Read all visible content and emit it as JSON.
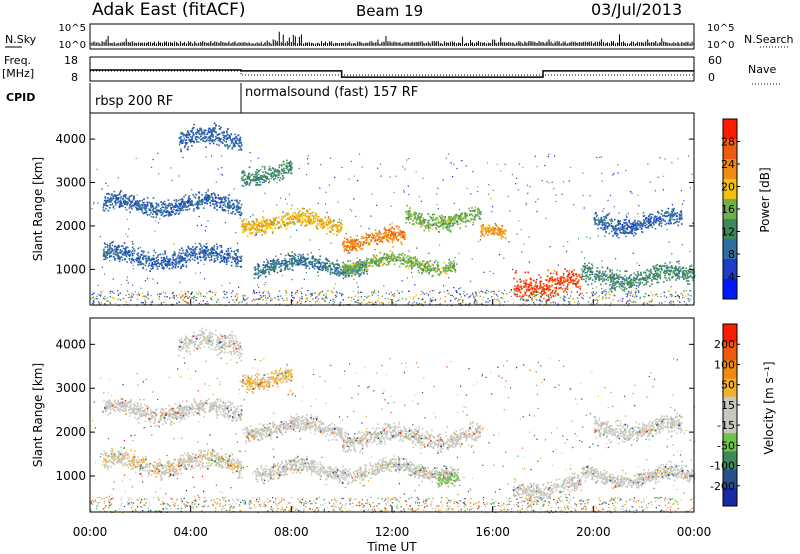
{
  "header": {
    "station": "Adak East (fitACF)",
    "beam": "Beam 19",
    "date": "03/Jul/2013"
  },
  "nsky_panel": {
    "left_label": "N.Sky",
    "right_label": "N.Search",
    "ticks_left": [
      "10^5",
      "10^0"
    ],
    "ticks_right": [
      "10^5",
      "10^0"
    ]
  },
  "freq_panel": {
    "left_label_1": "Freq.",
    "left_label_2": "[MHz]",
    "right_label": "Nave",
    "ticks_left": [
      "18",
      "8"
    ],
    "ticks_right": [
      "60",
      "0"
    ],
    "freq_segments": [
      {
        "start": "00:00",
        "end": "06:00",
        "freq_mhz": 12.6
      },
      {
        "start": "06:00",
        "end": "10:00",
        "freq_mhz": 12.2
      },
      {
        "start": "10:00",
        "end": "18:00",
        "freq_mhz": 9.6
      },
      {
        "start": "18:00",
        "end": "24:00",
        "freq_mhz": 12.2
      }
    ]
  },
  "cpid_panel": {
    "label": "CPID",
    "programs": [
      {
        "name": "rbsp 200 RF",
        "start": "00:00",
        "end": "06:00"
      },
      {
        "name": "normalsound (fast) 157 RF",
        "start": "06:00",
        "end": "24:00"
      }
    ]
  },
  "time_axis": {
    "label": "Time UT",
    "ticks": [
      "00:00",
      "04:00",
      "08:00",
      "12:00",
      "16:00",
      "20:00",
      "00:00"
    ]
  },
  "chart_data": [
    {
      "type": "heatmap",
      "panel": "power",
      "ylabel": "Slant Range [km]",
      "yticks": [
        "1000",
        "2000",
        "3000",
        "4000"
      ],
      "ylim": [
        180,
        4600
      ],
      "colorbar_label": "Power [dB]",
      "colorbar_ticks": [
        "4",
        "8",
        "12",
        "16",
        "20",
        "24",
        "28"
      ],
      "colorbar_range": [
        0,
        32
      ],
      "colorbar_colors": [
        "#0018ff",
        "#1d3fc8",
        "#2f6ea0",
        "#3c8a5c",
        "#6fb04a",
        "#f2c010",
        "#f08a10",
        "#ef5a10",
        "#ff1a00"
      ],
      "echo_bands": [
        {
          "start_h": 0.5,
          "end_h": 6,
          "range_km": 2500,
          "width_km": 280,
          "power_db": 8
        },
        {
          "start_h": 6,
          "end_h": 10,
          "range_km": 2100,
          "width_km": 260,
          "power_db": 20
        },
        {
          "start_h": 10,
          "end_h": 12.5,
          "range_km": 1700,
          "width_km": 240,
          "power_db": 24
        },
        {
          "start_h": 12.5,
          "end_h": 15.5,
          "range_km": 2200,
          "width_km": 260,
          "power_db": 16
        },
        {
          "start_h": 15.5,
          "end_h": 16.5,
          "range_km": 1800,
          "width_km": 220,
          "power_db": 22
        },
        {
          "start_h": 0.5,
          "end_h": 6,
          "range_km": 1300,
          "width_km": 300,
          "power_db": 8
        },
        {
          "start_h": 6.5,
          "end_h": 11,
          "range_km": 1100,
          "width_km": 250,
          "power_db": 10
        },
        {
          "start_h": 10,
          "end_h": 14.5,
          "range_km": 1150,
          "width_km": 220,
          "power_db": 16
        },
        {
          "start_h": 16.8,
          "end_h": 19.5,
          "range_km": 700,
          "width_km": 420,
          "power_db": 28
        },
        {
          "start_h": 19.5,
          "end_h": 24,
          "range_km": 850,
          "width_km": 300,
          "power_db": 12
        },
        {
          "start_h": 20,
          "end_h": 23.5,
          "range_km": 2100,
          "width_km": 300,
          "power_db": 8
        },
        {
          "start_h": 3.5,
          "end_h": 6,
          "range_km": 4000,
          "width_km": 350,
          "power_db": 8
        },
        {
          "start_h": 6,
          "end_h": 8,
          "range_km": 3250,
          "width_km": 260,
          "power_db": 12
        }
      ]
    },
    {
      "type": "heatmap",
      "panel": "velocity",
      "ylabel": "Slant Range [km]",
      "yticks": [
        "1000",
        "2000",
        "3000",
        "4000"
      ],
      "ylim": [
        180,
        4600
      ],
      "colorbar_label": "Velocity [m s⁻¹]",
      "colorbar_ticks": [
        "200",
        "100",
        "50",
        "15",
        "-15",
        "-50",
        "-100",
        "-200"
      ],
      "colorbar_range": [
        -250,
        250
      ],
      "colorbar_colors": [
        "#1a2aa0",
        "#27508a",
        "#3c8a5c",
        "#6fc24a",
        "#c8c8c0",
        "#c8c8c0",
        "#f0b030",
        "#f08a10",
        "#ef5a10",
        "#ff1a00"
      ],
      "echo_bands": [
        {
          "start_h": 0.5,
          "end_h": 6,
          "range_km": 2500,
          "width_km": 280,
          "velocity": 0
        },
        {
          "start_h": 6,
          "end_h": 10,
          "range_km": 2100,
          "width_km": 260,
          "velocity": 0
        },
        {
          "start_h": 10,
          "end_h": 15.5,
          "range_km": 1900,
          "width_km": 300,
          "velocity": 0
        },
        {
          "start_h": 0.5,
          "end_h": 6,
          "range_km": 1300,
          "width_km": 300,
          "velocity": -40
        },
        {
          "start_h": 6.5,
          "end_h": 14.5,
          "range_km": 1150,
          "width_km": 250,
          "velocity": 0
        },
        {
          "start_h": 13.8,
          "end_h": 14.6,
          "range_km": 1050,
          "width_km": 250,
          "velocity": 60
        },
        {
          "start_h": 16.8,
          "end_h": 19.5,
          "range_km": 750,
          "width_km": 300,
          "velocity": 0
        },
        {
          "start_h": 19.5,
          "end_h": 24,
          "range_km": 1000,
          "width_km": 250,
          "velocity": 0
        },
        {
          "start_h": 20,
          "end_h": 23.5,
          "range_km": 2100,
          "width_km": 300,
          "velocity": 0
        },
        {
          "start_h": 3.5,
          "end_h": 6,
          "range_km": 4000,
          "width_km": 350,
          "velocity": 0
        },
        {
          "start_h": 6,
          "end_h": 8,
          "range_km": 3250,
          "width_km": 260,
          "velocity": -60
        }
      ]
    }
  ]
}
